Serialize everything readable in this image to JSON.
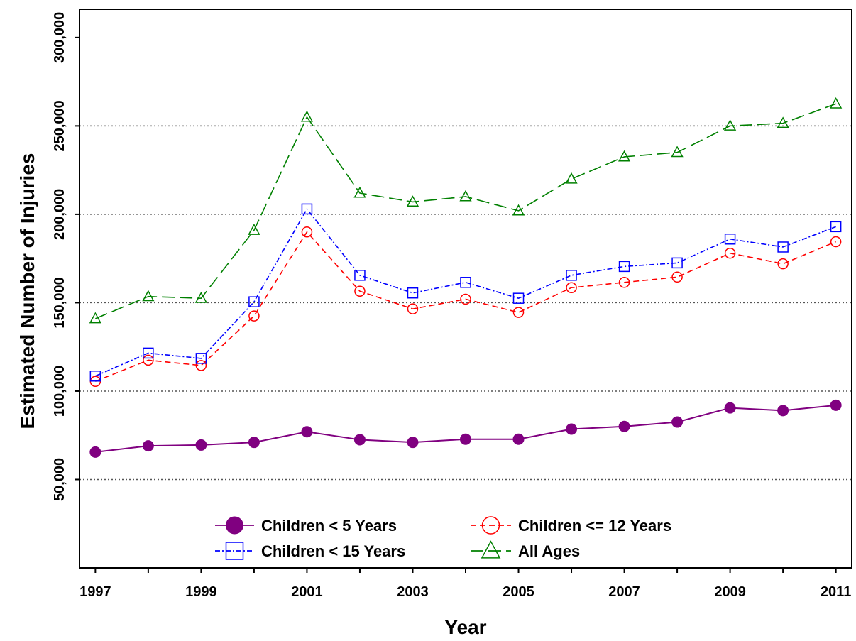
{
  "chart_data": {
    "type": "line",
    "title": "",
    "xlabel": "Year",
    "ylabel": "Estimated Number of Injuries",
    "x": [
      1997,
      1998,
      1999,
      2000,
      2001,
      2002,
      2003,
      2004,
      2005,
      2006,
      2007,
      2008,
      2009,
      2010,
      2011
    ],
    "xticks": [
      "1997",
      "1999",
      "2001",
      "2003",
      "2005",
      "2007",
      "2009",
      "2011"
    ],
    "xlim": [
      1996.7,
      2011.3
    ],
    "ylim": [
      0,
      316000
    ],
    "yticks": [
      "50,000",
      "100,000",
      "150,000",
      "200,000",
      "250,000",
      "300,000"
    ],
    "ytick_values": [
      50000,
      100000,
      150000,
      200000,
      250000,
      300000
    ],
    "grid": "horizontal dotted at 50,000-250,000",
    "legend_position": "bottom-center",
    "series": [
      {
        "name": "Children < 5 Years",
        "color": "#800080",
        "marker": "filled-circle",
        "line": "solid",
        "values": [
          65500,
          69000,
          69500,
          71000,
          77000,
          72500,
          71000,
          72800,
          72800,
          78500,
          80000,
          82500,
          90500,
          89000,
          92000
        ]
      },
      {
        "name": "Children <= 12 Years",
        "color": "#ff0000",
        "marker": "open-circle",
        "line": "dashed",
        "values": [
          105500,
          117500,
          114500,
          142500,
          190000,
          156500,
          146500,
          152000,
          144500,
          158500,
          161500,
          164500,
          178000,
          172000,
          184500
        ]
      },
      {
        "name": "Children < 15 Years",
        "color": "#0000ff",
        "marker": "open-square",
        "line": "dash-dot",
        "values": [
          108500,
          121500,
          118500,
          150500,
          203000,
          165500,
          155500,
          161500,
          152500,
          165500,
          170500,
          172500,
          186000,
          181500,
          193000
        ]
      },
      {
        "name": "All Ages",
        "color": "#008000",
        "marker": "open-triangle",
        "line": "long-dash",
        "values": [
          141000,
          153500,
          152500,
          191000,
          255000,
          212000,
          207000,
          210000,
          202000,
          220000,
          232500,
          235000,
          250000,
          251500,
          262500
        ]
      }
    ]
  }
}
